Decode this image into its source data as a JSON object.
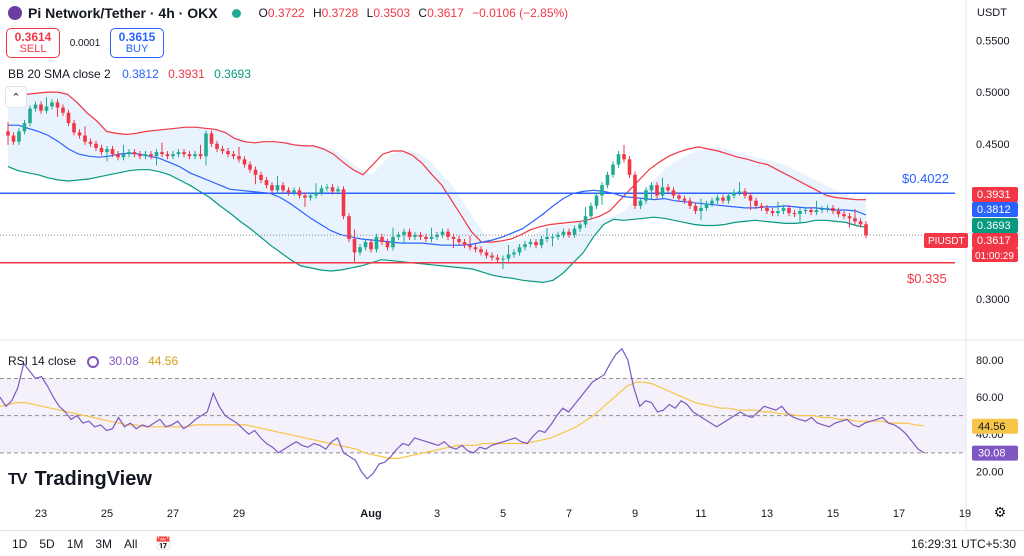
{
  "header": {
    "title": "Pi Network/Tether · 4h · OKX",
    "open_key": "O",
    "open": "0.3722",
    "high_key": "H",
    "high": "0.3728",
    "low_key": "L",
    "low": "0.3503",
    "close_key": "C",
    "close": "0.3617",
    "change": "−0.0106 (−2.85%)"
  },
  "trade": {
    "sell_price": "0.3614",
    "sell_label": "SELL",
    "spread": "0.0001",
    "buy_price": "0.3615",
    "buy_label": "BUY"
  },
  "currency": "USDT",
  "bb_legend": {
    "name": "BB 20 SMA close 2",
    "basis": "0.3812",
    "upper": "0.3931",
    "lower": "0.3693"
  },
  "rsi_legend": {
    "name": "RSI 14 close",
    "rsi": "30.08",
    "ma": "44.56"
  },
  "brand": "TradingView",
  "time_ranges": [
    "1D",
    "5D",
    "1M",
    "3M",
    "All"
  ],
  "clock": "16:29:31 UTC+5:30",
  "colors": {
    "up": "#22ab94",
    "down": "#f23645",
    "bb_basis": "#2962ff",
    "bb_upper": "#f23645",
    "bb_lower": "#089981",
    "bb_fill": "#e3f0fd",
    "rsi": "#7e57c2",
    "rsi_ma": "#f7c548",
    "hline_blue": "#2962ff",
    "hline_red": "#f23645"
  },
  "chart_data": [
    {
      "type": "candlestick",
      "title": "Pi Network/Tether · 4h · OKX",
      "interval": "4h",
      "ylim": [
        0.27,
        0.56
      ],
      "y_ticks": [
        0.3,
        0.35,
        0.4,
        0.45,
        0.5,
        0.55
      ],
      "y_tick_labels": [
        "0.3000",
        "",
        "",
        "0.4500",
        "0.5000",
        "0.5500"
      ],
      "x_ticks": [
        {
          "index": 0,
          "label": "23"
        },
        {
          "index": 12,
          "label": "25"
        },
        {
          "index": 24,
          "label": "27"
        },
        {
          "index": 36,
          "label": "29"
        },
        {
          "index": 60,
          "label": "Aug"
        },
        {
          "index": 72,
          "label": "3"
        },
        {
          "index": 84,
          "label": "5"
        },
        {
          "index": 96,
          "label": "7"
        },
        {
          "index": 108,
          "label": "9"
        },
        {
          "index": 120,
          "label": "11"
        },
        {
          "index": 132,
          "label": "13"
        },
        {
          "index": 144,
          "label": "15"
        },
        {
          "index": 156,
          "label": "17"
        },
        {
          "index": 168,
          "label": "19"
        }
      ],
      "first_index": -6,
      "series": [
        {
          "name": "PIUSDT",
          "ohlc_close": [
            0.458,
            0.452,
            0.462,
            0.47,
            0.484,
            0.488,
            0.482,
            0.486,
            0.49,
            0.485,
            0.48,
            0.47,
            0.461,
            0.458,
            0.452,
            0.45,
            0.446,
            0.442,
            0.445,
            0.44,
            0.437,
            0.44,
            0.442,
            0.44,
            0.438,
            0.44,
            0.438,
            0.442,
            0.44,
            0.438,
            0.44,
            0.442,
            0.44,
            0.438,
            0.44,
            0.438,
            0.46,
            0.45,
            0.445,
            0.443,
            0.44,
            0.438,
            0.435,
            0.43,
            0.425,
            0.42,
            0.415,
            0.41,
            0.405,
            0.41,
            0.405,
            0.403,
            0.405,
            0.4,
            0.398,
            0.4,
            0.403,
            0.407,
            0.408,
            0.404,
            0.406,
            0.38,
            0.358,
            0.345,
            0.35,
            0.355,
            0.348,
            0.36,
            0.355,
            0.35,
            0.36,
            0.362,
            0.365,
            0.36,
            0.362,
            0.36,
            0.358,
            0.36,
            0.362,
            0.365,
            0.36,
            0.358,
            0.355,
            0.352,
            0.35,
            0.348,
            0.345,
            0.342,
            0.34,
            0.338,
            0.339,
            0.343,
            0.345,
            0.35,
            0.353,
            0.355,
            0.352,
            0.358,
            0.36,
            0.36,
            0.362,
            0.365,
            0.362,
            0.368,
            0.372,
            0.38,
            0.39,
            0.4,
            0.41,
            0.42,
            0.43,
            0.44,
            0.435,
            0.42,
            0.39,
            0.395,
            0.405,
            0.41,
            0.4,
            0.408,
            0.405,
            0.4,
            0.397,
            0.395,
            0.39,
            0.385,
            0.388,
            0.392,
            0.395,
            0.398,
            0.395,
            0.4,
            0.403,
            0.404,
            0.4,
            0.395,
            0.39,
            0.388,
            0.385,
            0.383,
            0.385,
            0.388,
            0.383,
            0.382,
            0.385,
            0.386,
            0.384,
            0.386,
            0.387,
            0.388,
            0.385,
            0.382,
            0.38,
            0.378,
            0.375,
            0.3722,
            0.3617
          ]
        },
        {
          "name": "BB upper",
          "values": [
            0.495,
            0.497,
            0.498,
            0.499,
            0.5,
            0.5,
            0.498,
            0.49,
            0.48,
            0.472,
            0.462,
            0.46,
            0.459,
            0.46,
            0.462,
            0.463,
            0.464,
            0.465,
            0.466,
            0.466,
            0.465,
            0.464,
            0.461,
            0.455,
            0.452,
            0.451,
            0.452,
            0.452,
            0.451,
            0.449,
            0.448,
            0.448,
            0.445,
            0.44,
            0.432,
            0.425,
            0.42,
            0.43,
            0.44,
            0.443,
            0.443,
            0.439,
            0.431,
            0.42,
            0.41,
            0.395,
            0.38,
            0.365,
            0.355,
            0.355,
            0.356,
            0.358,
            0.362,
            0.367,
            0.37,
            0.372,
            0.373,
            0.374,
            0.375,
            0.377,
            0.38,
            0.385,
            0.395,
            0.405,
            0.415,
            0.425,
            0.432,
            0.438,
            0.442,
            0.445,
            0.447,
            0.445,
            0.443,
            0.44,
            0.437,
            0.435,
            0.432,
            0.43,
            0.425,
            0.42,
            0.415,
            0.41,
            0.405,
            0.4,
            0.398,
            0.397,
            0.396,
            0.396
          ]
        },
        {
          "name": "BB basis",
          "values": [
            0.468,
            0.468,
            0.465,
            0.462,
            0.458,
            0.452,
            0.445,
            0.44,
            0.438,
            0.437,
            0.438,
            0.44,
            0.441,
            0.44,
            0.438,
            0.436,
            0.432,
            0.428,
            0.422,
            0.418,
            0.414,
            0.41,
            0.406,
            0.405,
            0.404,
            0.403,
            0.402,
            0.398,
            0.392,
            0.385,
            0.378,
            0.372,
            0.366,
            0.362,
            0.36,
            0.358,
            0.357,
            0.356,
            0.355,
            0.354,
            0.354,
            0.354,
            0.353,
            0.352,
            0.352,
            0.352,
            0.353,
            0.355,
            0.357,
            0.36,
            0.364,
            0.368,
            0.375,
            0.382,
            0.39,
            0.397,
            0.402,
            0.404,
            0.405,
            0.404,
            0.402,
            0.399,
            0.398,
            0.397,
            0.396,
            0.397,
            0.395,
            0.394,
            0.393,
            0.392,
            0.391,
            0.39,
            0.389,
            0.388,
            0.388,
            0.389,
            0.389,
            0.39,
            0.389,
            0.388,
            0.388,
            0.387,
            0.386,
            0.386,
            0.385,
            0.3812
          ]
        },
        {
          "name": "BB lower",
          "values": [
            0.428,
            0.424,
            0.422,
            0.42,
            0.417,
            0.415,
            0.414,
            0.415,
            0.416,
            0.418,
            0.42,
            0.422,
            0.424,
            0.425,
            0.425,
            0.423,
            0.42,
            0.415,
            0.41,
            0.404,
            0.398,
            0.39,
            0.383,
            0.375,
            0.368,
            0.36,
            0.352,
            0.345,
            0.338,
            0.332,
            0.33,
            0.328,
            0.327,
            0.328,
            0.33,
            0.332,
            0.335,
            0.338,
            0.337,
            0.336,
            0.335,
            0.334,
            0.333,
            0.332,
            0.331,
            0.33,
            0.329,
            0.326,
            0.323,
            0.321,
            0.32,
            0.318,
            0.317,
            0.316,
            0.318,
            0.325,
            0.335,
            0.345,
            0.36,
            0.372,
            0.377,
            0.376,
            0.377,
            0.378,
            0.379,
            0.378,
            0.376,
            0.374,
            0.372,
            0.371,
            0.371,
            0.372,
            0.374,
            0.375,
            0.376,
            0.375,
            0.374,
            0.373,
            0.373,
            0.374,
            0.376,
            0.376,
            0.375,
            0.374,
            0.371,
            0.3693
          ]
        }
      ],
      "price_labels": [
        {
          "text": "0.3931",
          "value": 0.3931,
          "color": "#f23645"
        },
        {
          "text": "0.3812",
          "value": 0.3812,
          "color": "#2962ff"
        },
        {
          "text": "0.3693",
          "value": 0.3693,
          "color": "#089981"
        },
        {
          "text": "0.3617",
          "value": 0.3617,
          "color": "#f23645",
          "symbol": "PIUSDT",
          "countdown": "01:00:29"
        }
      ],
      "horizontal_lines": [
        {
          "value": 0.4022,
          "label": "$0.4022",
          "color": "#2962ff"
        },
        {
          "value": 0.335,
          "label": "$0.335",
          "color": "#f23645"
        }
      ]
    },
    {
      "type": "line",
      "title": "RSI 14 close",
      "ylim": [
        10,
        88
      ],
      "y_ticks": [
        20,
        40,
        60,
        80
      ],
      "y_tick_labels": [
        "20.00",
        "40.00",
        "60.00",
        "80.00"
      ],
      "bands": [
        70,
        50,
        30
      ],
      "series": [
        {
          "name": "RSI",
          "values": [
            60,
            55,
            58,
            65,
            78,
            74,
            70,
            71,
            66,
            60,
            55,
            52,
            48,
            50,
            46,
            47,
            44,
            45,
            42,
            43,
            49,
            44,
            46,
            43,
            45,
            44,
            46,
            48,
            44,
            45,
            47,
            43,
            45,
            48,
            50,
            52,
            62,
            55,
            50,
            48,
            46,
            43,
            40,
            42,
            38,
            35,
            33,
            30,
            32,
            34,
            36,
            34,
            33,
            35,
            34,
            32,
            36,
            38,
            30,
            28,
            26,
            20,
            16,
            19,
            24,
            25,
            28,
            32,
            35,
            34,
            38,
            37,
            36,
            35,
            34,
            36,
            33,
            32,
            34,
            31,
            30,
            33,
            32,
            34,
            35,
            36,
            37,
            38,
            36,
            35,
            39,
            42,
            41,
            45,
            50,
            54,
            52,
            56,
            60,
            64,
            68,
            70,
            72,
            78,
            83,
            86,
            80,
            65,
            55,
            58,
            57,
            52,
            53,
            56,
            54,
            58,
            56,
            52,
            50,
            48,
            46,
            44,
            46,
            48,
            50,
            52,
            50,
            49,
            52,
            55,
            54,
            53,
            55,
            51,
            49,
            48,
            47,
            49,
            46,
            45,
            44,
            46,
            47,
            48,
            45,
            44,
            46,
            47,
            48,
            49,
            46,
            45,
            43,
            40,
            36,
            32,
            30.08
          ]
        },
        {
          "name": "RSI MA",
          "values": [
            55,
            56,
            57,
            57,
            56,
            55,
            54,
            53,
            52,
            51,
            50,
            49,
            48,
            47,
            46,
            45,
            45,
            44,
            44,
            44,
            44,
            44,
            44,
            45,
            45,
            45,
            45,
            45,
            45,
            45,
            44,
            43,
            42,
            41,
            40,
            39,
            38,
            37,
            36,
            35,
            34,
            33,
            32,
            30,
            29,
            28,
            27,
            27,
            28,
            29,
            30,
            31,
            32,
            33,
            34,
            34,
            34,
            35,
            35,
            35,
            35,
            35,
            35,
            36,
            37,
            38,
            40,
            42,
            44,
            47,
            50,
            54,
            58,
            62,
            66,
            68,
            68,
            67,
            65,
            63,
            61,
            59,
            57,
            56,
            55,
            54,
            54,
            53,
            53,
            53,
            52,
            52,
            51,
            51,
            50,
            50,
            50,
            49,
            49,
            48,
            48,
            47,
            47,
            47,
            47,
            46,
            46,
            46,
            45,
            44.56
          ]
        }
      ],
      "price_labels": [
        {
          "text": "44.56",
          "value": 44.56,
          "color": "#f7c548"
        },
        {
          "text": "30.08",
          "value": 30.08,
          "color": "#7e57c2"
        }
      ]
    }
  ]
}
